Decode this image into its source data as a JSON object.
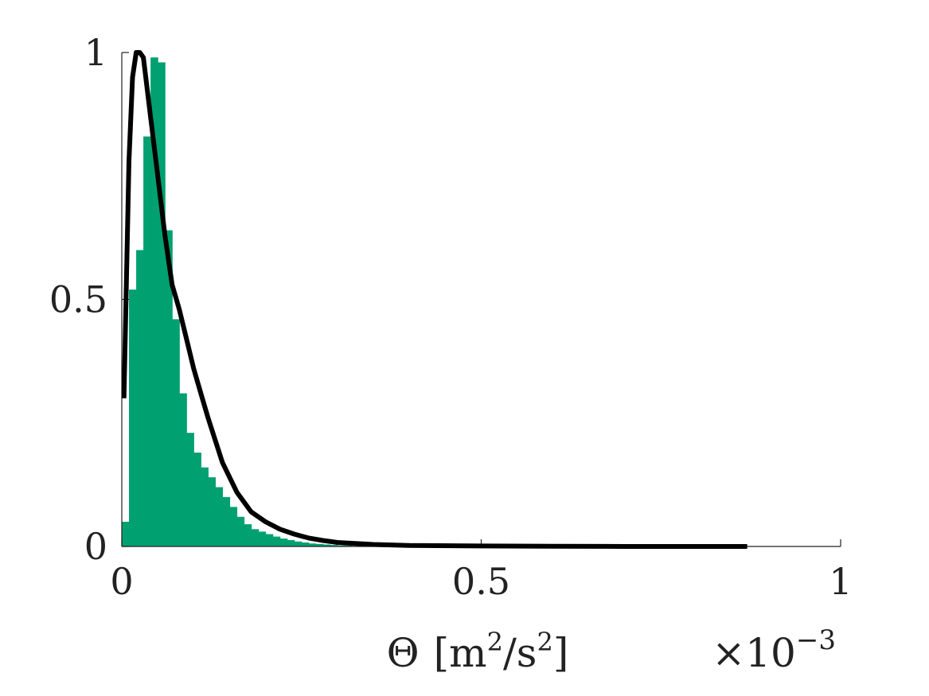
{
  "chart_data": {
    "type": "bar",
    "title": "",
    "xlabel": {
      "symbol": "Θ",
      "unit_open": "[m",
      "unit_sup1": "2",
      "unit_mid": "/s",
      "unit_sup2": "2",
      "unit_close": "]"
    },
    "ylabel": "",
    "x_multiplier": {
      "prefix": "×10",
      "exponent": "−3"
    },
    "xlim": [
      0,
      1
    ],
    "ylim": [
      0,
      1
    ],
    "x_ticks": [
      "0",
      "0.5",
      "1"
    ],
    "y_ticks": [
      "0",
      "0.5",
      "1"
    ],
    "x_tick_values": [
      0,
      0.5,
      1
    ],
    "y_tick_values": [
      0,
      0.5,
      1
    ],
    "grid": false,
    "histogram": {
      "color": "#00A070",
      "bin_width": 0.01,
      "bin_start": 0.0,
      "values": [
        0.05,
        0.52,
        0.6,
        0.83,
        0.99,
        0.98,
        0.64,
        0.46,
        0.31,
        0.23,
        0.19,
        0.16,
        0.14,
        0.12,
        0.1,
        0.08,
        0.06,
        0.045,
        0.035,
        0.03,
        0.025,
        0.02,
        0.016,
        0.013,
        0.01,
        0.008,
        0.006,
        0.005,
        0.004,
        0.003,
        0.002,
        0.002,
        0.001,
        0.001
      ]
    },
    "curve": {
      "color": "#000000",
      "x": [
        0.003,
        0.01,
        0.015,
        0.02,
        0.025,
        0.03,
        0.04,
        0.05,
        0.06,
        0.07,
        0.08,
        0.09,
        0.1,
        0.11,
        0.12,
        0.14,
        0.16,
        0.18,
        0.2,
        0.22,
        0.24,
        0.26,
        0.28,
        0.3,
        0.35,
        0.4,
        0.5,
        0.6,
        0.7,
        0.87
      ],
      "y": [
        0.3,
        0.78,
        0.95,
        1.0,
        1.0,
        0.99,
        0.87,
        0.75,
        0.63,
        0.53,
        0.48,
        0.42,
        0.36,
        0.31,
        0.26,
        0.17,
        0.11,
        0.07,
        0.05,
        0.035,
        0.025,
        0.017,
        0.012,
        0.008,
        0.004,
        0.002,
        0.001,
        0.0005,
        0.0,
        0.0
      ]
    }
  }
}
